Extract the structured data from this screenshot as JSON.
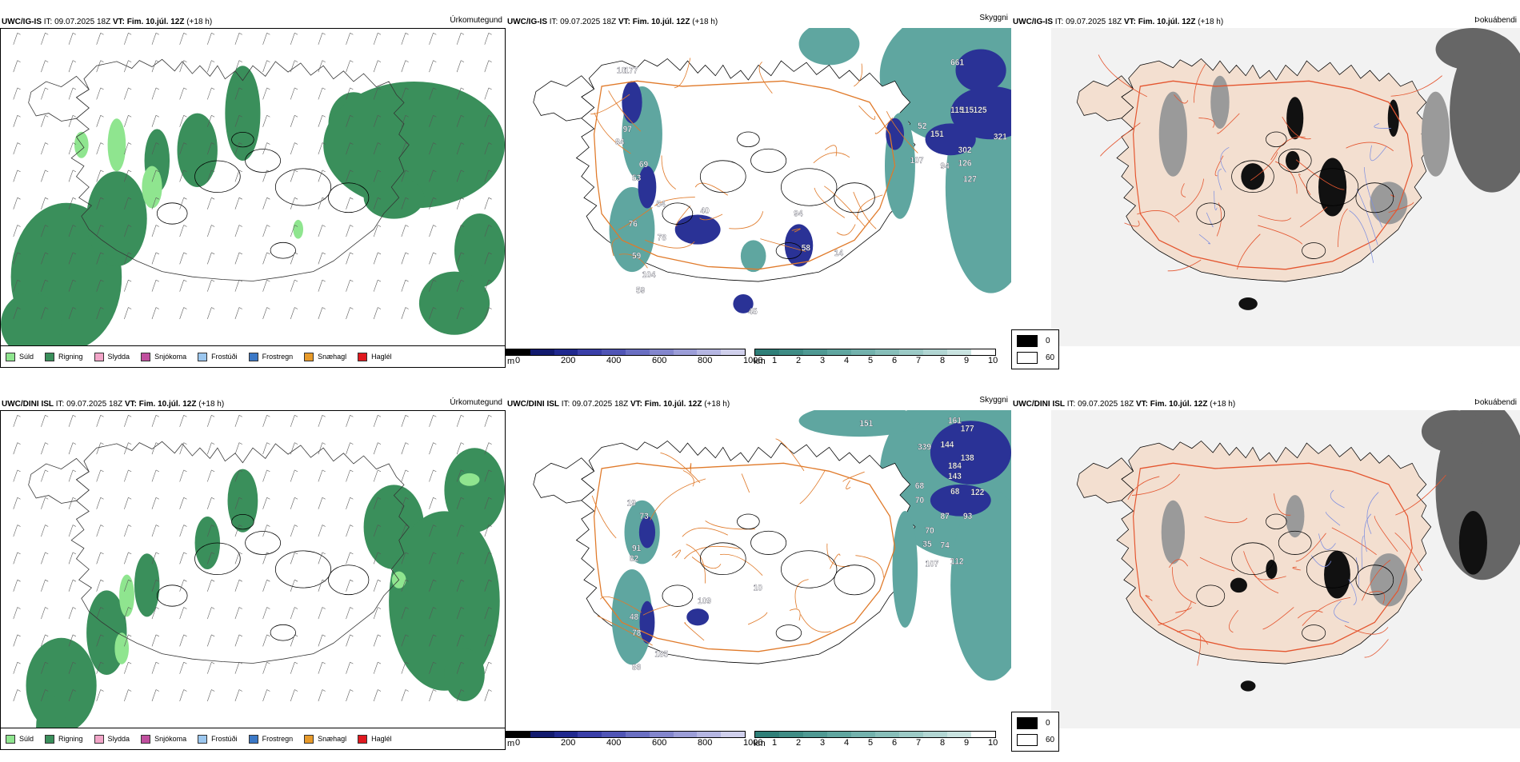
{
  "colors": {
    "green_rain": "#3a8f5b",
    "light_green": "#8fe58f",
    "land_beige": "#f3dfd0",
    "road_orange": "#e07a2a",
    "road_red": "#e4552f",
    "sea_teal": "#5fa6a0",
    "cloud_blue": "#2a3296",
    "fog_black": "#000000"
  },
  "rows": [
    {
      "model": "UWC/IG-IS",
      "it_label": "IT: 09.07.2025 18Z",
      "vt_label": "VT: Fim. 10.júl. 12Z",
      "lead": "(+18 h)",
      "panels": [
        "Úrkomutegund",
        "Skyggni",
        "Þokuábendi"
      ],
      "numbers": [
        "661",
        "115",
        "115",
        "125",
        "321",
        "52",
        "151",
        "302",
        "107",
        "94",
        "126",
        "127",
        "10",
        "97",
        "84",
        "69",
        "53",
        "54",
        "40",
        "58",
        "76",
        "78",
        "59",
        "104",
        "59",
        "94",
        "14",
        "45",
        "177"
      ]
    },
    {
      "model": "UWC/DINI ISL",
      "it_label": "IT: 09.07.2025 18Z",
      "vt_label": "VT: Fim. 10.júl. 12Z",
      "lead": "(+18 h)",
      "panels": [
        "Úrkomutegund",
        "Skyggni",
        "Þokuábendi"
      ],
      "numbers": [
        "151",
        "161",
        "177",
        "339",
        "144",
        "184",
        "138",
        "143",
        "122",
        "68",
        "68",
        "70",
        "93",
        "87",
        "70",
        "35",
        "74",
        "112",
        "107",
        "73",
        "91",
        "82",
        "109",
        "48",
        "78",
        "185",
        "86",
        "10",
        "19"
      ]
    }
  ],
  "precip_legend": [
    {
      "label": "Súld",
      "color": "#8fe58f"
    },
    {
      "label": "Rigning",
      "color": "#3a8f5b"
    },
    {
      "label": "Slydda",
      "color": "#f2a5c8"
    },
    {
      "label": "Snjókoma",
      "color": "#c04f9e"
    },
    {
      "label": "Frostúði",
      "color": "#9cc7ef"
    },
    {
      "label": "Frostregn",
      "color": "#3b78c6"
    },
    {
      "label": "Snæhagl",
      "color": "#e79a2a"
    },
    {
      "label": "Haglél",
      "color": "#e0191f"
    }
  ],
  "cloud_base": {
    "unit": "m",
    "ticks": [
      "0",
      "200",
      "400",
      "600",
      "800",
      "1000"
    ]
  },
  "visibility": {
    "unit": "km",
    "ticks": [
      "1",
      "2",
      "3",
      "4",
      "5",
      "6",
      "7",
      "8",
      "9",
      "10"
    ]
  },
  "fog_legend": {
    "low": "0",
    "high": "60"
  }
}
